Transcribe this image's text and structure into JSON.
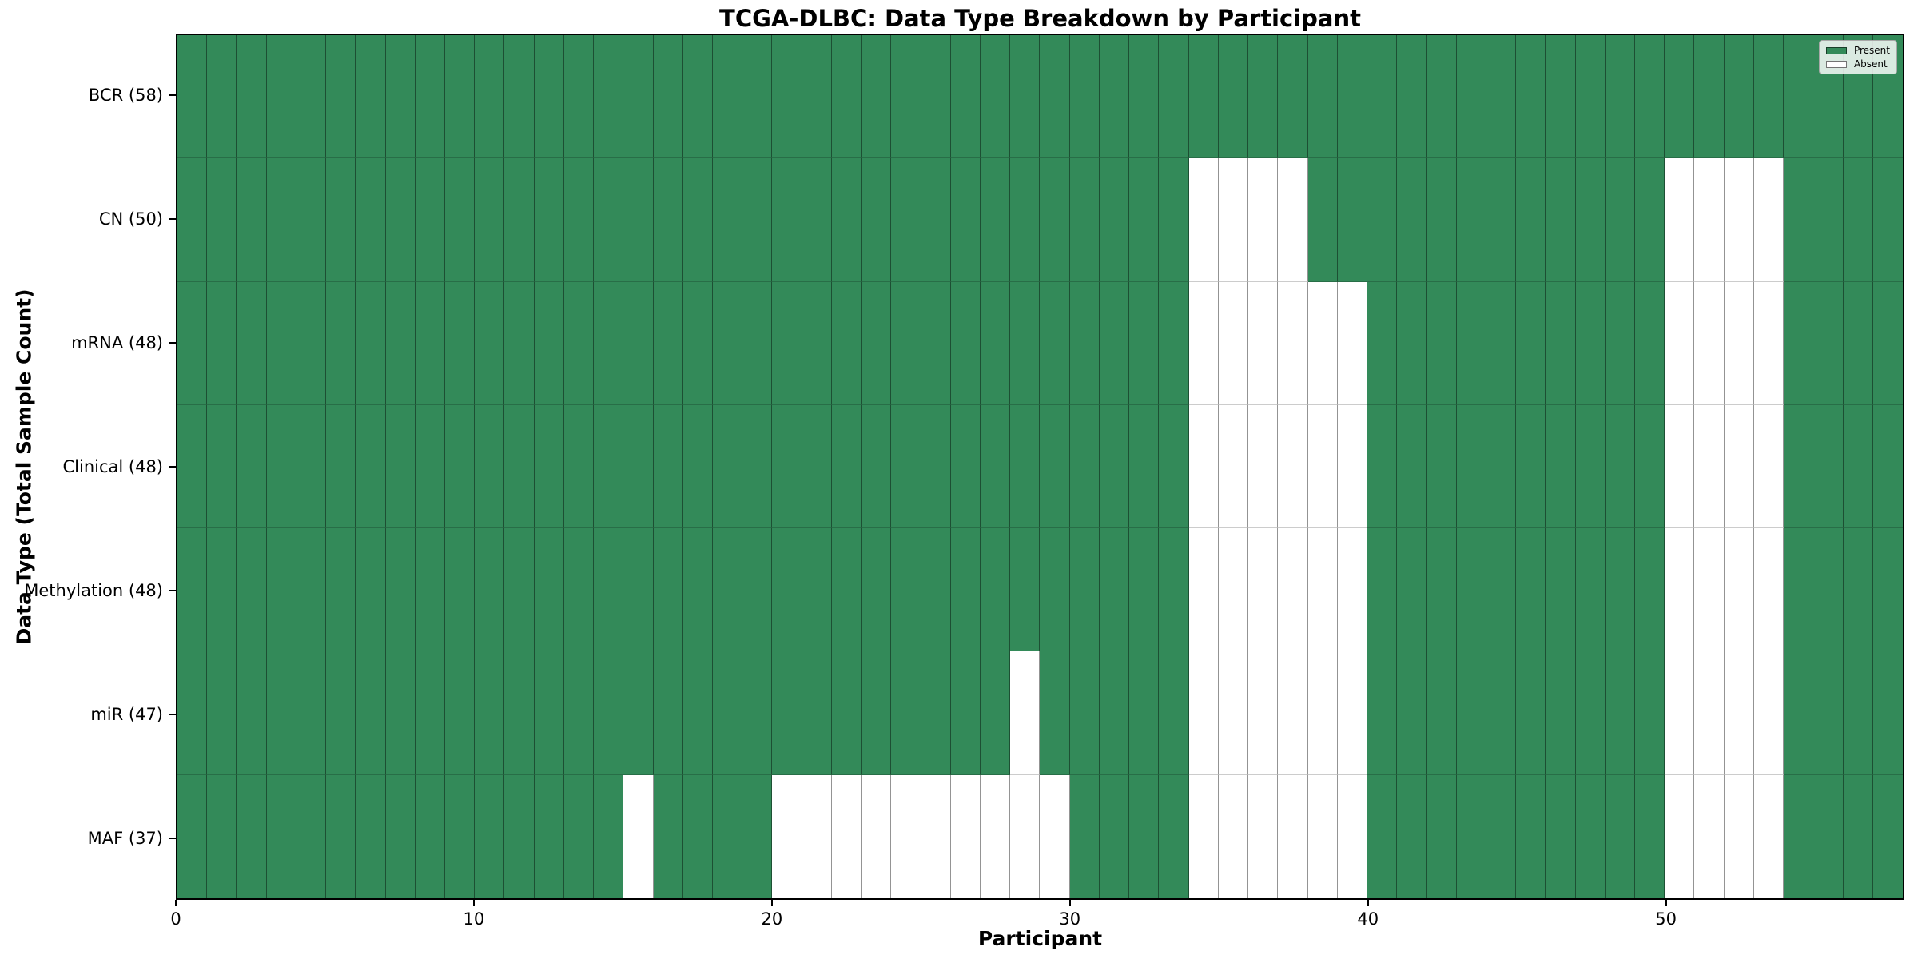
{
  "chart_data": {
    "type": "heatmap",
    "title": "TCGA-DLBC: Data Type Breakdown by Participant",
    "xlabel": "Participant",
    "ylabel": "Data Type (Total Sample Count)",
    "n_participants": 58,
    "x_range": [
      0,
      58
    ],
    "x_ticks": [
      0,
      10,
      20,
      30,
      40,
      50
    ],
    "grid": true,
    "legend_position": "upper right",
    "legend": [
      {
        "key": "present",
        "label": "Present",
        "color": "#338a59"
      },
      {
        "key": "absent",
        "label": "Absent",
        "color": "#ffffff"
      }
    ],
    "colors": {
      "present": "#338a59",
      "absent": "#ffffff"
    },
    "rows": [
      {
        "label": "BCR (58)",
        "data_type": "BCR",
        "total": 58,
        "absent_participants": []
      },
      {
        "label": "CN (50)",
        "data_type": "CN",
        "total": 50,
        "absent_participants": [
          34,
          35,
          36,
          37,
          50,
          51,
          52,
          53
        ]
      },
      {
        "label": "mRNA (48)",
        "data_type": "mRNA",
        "total": 48,
        "absent_participants": [
          34,
          35,
          36,
          37,
          38,
          39,
          50,
          51,
          52,
          53
        ]
      },
      {
        "label": "Clinical (48)",
        "data_type": "Clinical",
        "total": 48,
        "absent_participants": [
          34,
          35,
          36,
          37,
          38,
          39,
          50,
          51,
          52,
          53
        ]
      },
      {
        "label": "Methylation (48)",
        "data_type": "Methylation",
        "total": 48,
        "absent_participants": [
          34,
          35,
          36,
          37,
          38,
          39,
          50,
          51,
          52,
          53
        ]
      },
      {
        "label": "miR (47)",
        "data_type": "miR",
        "total": 47,
        "absent_participants": [
          28,
          34,
          35,
          36,
          37,
          38,
          39,
          50,
          51,
          52,
          53
        ]
      },
      {
        "label": "MAF (37)",
        "data_type": "MAF",
        "total": 37,
        "absent_participants": [
          15,
          20,
          21,
          22,
          23,
          24,
          25,
          26,
          27,
          28,
          29,
          34,
          35,
          36,
          37,
          38,
          39,
          50,
          51,
          52,
          53
        ]
      }
    ]
  }
}
